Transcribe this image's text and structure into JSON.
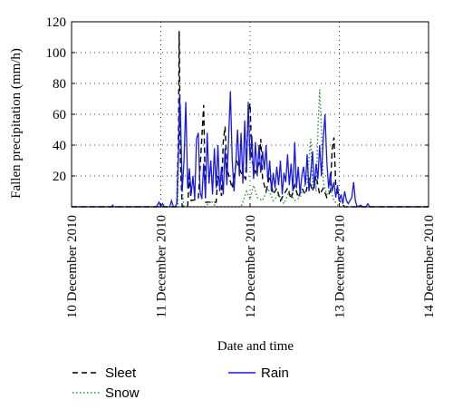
{
  "chart_data": {
    "type": "line",
    "xlabel": "Date and time",
    "ylabel": "Fallen precipitation (mm/h)",
    "ylim": [
      0,
      120
    ],
    "yticks": [
      20,
      40,
      60,
      80,
      100,
      120
    ],
    "x_range_days": [
      "10 December 2010",
      "14 December 2010"
    ],
    "xticks": [
      "10 December 2010",
      "11 December 2010",
      "12 December 2010",
      "13 December 2010",
      "14 December 2010"
    ],
    "grid": "dotted",
    "legend_placement": "bottom",
    "x_note": "x values are day offsets from 10 December 2010 00:00",
    "series": [
      {
        "name": "Sleet",
        "style": "dashed",
        "color": "#000000",
        "points": [
          [
            0,
            0
          ],
          [
            1.18,
            0
          ],
          [
            1.2,
            55
          ],
          [
            1.205,
            114
          ],
          [
            1.21,
            90
          ],
          [
            1.22,
            28
          ],
          [
            1.24,
            0
          ],
          [
            1.3,
            0
          ],
          [
            1.32,
            20
          ],
          [
            1.34,
            4
          ],
          [
            1.42,
            5
          ],
          [
            1.46,
            45
          ],
          [
            1.48,
            66
          ],
          [
            1.5,
            3
          ],
          [
            1.62,
            3
          ],
          [
            1.64,
            20
          ],
          [
            1.66,
            14
          ],
          [
            1.68,
            7
          ],
          [
            1.7,
            42
          ],
          [
            1.72,
            52
          ],
          [
            1.74,
            25
          ],
          [
            1.8,
            12
          ],
          [
            1.85,
            30
          ],
          [
            1.9,
            22
          ],
          [
            1.95,
            18
          ],
          [
            1.98,
            60
          ],
          [
            2.0,
            67
          ],
          [
            2.02,
            30
          ],
          [
            2.06,
            22
          ],
          [
            2.1,
            28
          ],
          [
            2.12,
            44
          ],
          [
            2.14,
            18
          ],
          [
            2.18,
            10
          ],
          [
            2.22,
            20
          ],
          [
            2.26,
            8
          ],
          [
            2.3,
            12
          ],
          [
            2.34,
            4
          ],
          [
            2.38,
            8
          ],
          [
            2.42,
            12
          ],
          [
            2.46,
            5
          ],
          [
            2.5,
            14
          ],
          [
            2.54,
            6
          ],
          [
            2.58,
            12
          ],
          [
            2.62,
            8
          ],
          [
            2.66,
            18
          ],
          [
            2.7,
            10
          ],
          [
            2.74,
            20
          ],
          [
            2.78,
            8
          ],
          [
            2.82,
            12
          ],
          [
            2.86,
            6
          ],
          [
            2.9,
            10
          ],
          [
            2.92,
            37
          ],
          [
            2.94,
            45
          ],
          [
            2.96,
            14
          ],
          [
            3.0,
            4
          ],
          [
            3.06,
            0
          ],
          [
            4.0,
            0
          ]
        ]
      },
      {
        "name": "Snow",
        "style": "dotted",
        "color": "#2e8b3a",
        "points": [
          [
            0,
            0
          ],
          [
            1.19,
            0
          ],
          [
            1.2,
            40
          ],
          [
            1.22,
            66
          ],
          [
            1.24,
            10
          ],
          [
            1.26,
            0
          ],
          [
            1.5,
            0
          ],
          [
            1.56,
            4
          ],
          [
            1.62,
            0
          ],
          [
            1.9,
            0
          ],
          [
            1.96,
            10
          ],
          [
            2.0,
            5
          ],
          [
            2.04,
            14
          ],
          [
            2.08,
            6
          ],
          [
            2.14,
            4
          ],
          [
            2.2,
            12
          ],
          [
            2.26,
            4
          ],
          [
            2.32,
            8
          ],
          [
            2.38,
            2
          ],
          [
            2.44,
            10
          ],
          [
            2.5,
            4
          ],
          [
            2.56,
            6
          ],
          [
            2.6,
            12
          ],
          [
            2.64,
            18
          ],
          [
            2.68,
            44
          ],
          [
            2.7,
            14
          ],
          [
            2.72,
            20
          ],
          [
            2.74,
            10
          ],
          [
            2.76,
            50
          ],
          [
            2.78,
            76
          ],
          [
            2.8,
            50
          ],
          [
            2.82,
            16
          ],
          [
            2.86,
            8
          ],
          [
            2.9,
            12
          ],
          [
            2.94,
            4
          ],
          [
            3.0,
            0
          ],
          [
            4.0,
            0
          ]
        ]
      },
      {
        "name": "Rain",
        "style": "solid",
        "color": "#1a1adf",
        "points": [
          [
            0,
            0
          ],
          [
            0.45,
            0
          ],
          [
            0.46,
            1
          ],
          [
            0.47,
            0
          ],
          [
            0.95,
            0
          ],
          [
            0.98,
            3
          ],
          [
            1.0,
            0
          ],
          [
            1.02,
            2
          ],
          [
            1.04,
            0
          ],
          [
            1.1,
            0
          ],
          [
            1.12,
            4
          ],
          [
            1.14,
            0
          ],
          [
            1.16,
            0
          ],
          [
            1.18,
            2
          ],
          [
            1.2,
            40
          ],
          [
            1.21,
            72
          ],
          [
            1.22,
            58
          ],
          [
            1.24,
            10
          ],
          [
            1.26,
            30
          ],
          [
            1.28,
            68
          ],
          [
            1.3,
            12
          ],
          [
            1.32,
            25
          ],
          [
            1.34,
            8
          ],
          [
            1.36,
            20
          ],
          [
            1.38,
            5
          ],
          [
            1.4,
            44
          ],
          [
            1.42,
            48
          ],
          [
            1.44,
            10
          ],
          [
            1.46,
            5
          ],
          [
            1.48,
            28
          ],
          [
            1.5,
            6
          ],
          [
            1.52,
            48
          ],
          [
            1.54,
            15
          ],
          [
            1.56,
            30
          ],
          [
            1.58,
            8
          ],
          [
            1.6,
            38
          ],
          [
            1.62,
            12
          ],
          [
            1.64,
            40
          ],
          [
            1.66,
            10
          ],
          [
            1.68,
            26
          ],
          [
            1.7,
            8
          ],
          [
            1.72,
            38
          ],
          [
            1.74,
            14
          ],
          [
            1.76,
            46
          ],
          [
            1.78,
            75
          ],
          [
            1.8,
            30
          ],
          [
            1.82,
            10
          ],
          [
            1.84,
            28
          ],
          [
            1.86,
            50
          ],
          [
            1.88,
            20
          ],
          [
            1.9,
            48
          ],
          [
            1.92,
            15
          ],
          [
            1.94,
            56
          ],
          [
            1.96,
            22
          ],
          [
            1.98,
            68
          ],
          [
            2.0,
            30
          ],
          [
            2.02,
            46
          ],
          [
            2.04,
            18
          ],
          [
            2.06,
            42
          ],
          [
            2.08,
            20
          ],
          [
            2.1,
            40
          ],
          [
            2.12,
            22
          ],
          [
            2.14,
            36
          ],
          [
            2.16,
            24
          ],
          [
            2.18,
            40
          ],
          [
            2.2,
            16
          ],
          [
            2.22,
            30
          ],
          [
            2.24,
            10
          ],
          [
            2.26,
            22
          ],
          [
            2.28,
            12
          ],
          [
            2.3,
            26
          ],
          [
            2.32,
            14
          ],
          [
            2.34,
            30
          ],
          [
            2.36,
            8
          ],
          [
            2.38,
            22
          ],
          [
            2.4,
            16
          ],
          [
            2.42,
            34
          ],
          [
            2.44,
            14
          ],
          [
            2.46,
            28
          ],
          [
            2.48,
            10
          ],
          [
            2.5,
            42
          ],
          [
            2.52,
            12
          ],
          [
            2.54,
            26
          ],
          [
            2.56,
            8
          ],
          [
            2.58,
            20
          ],
          [
            2.6,
            26
          ],
          [
            2.62,
            14
          ],
          [
            2.64,
            34
          ],
          [
            2.66,
            10
          ],
          [
            2.68,
            22
          ],
          [
            2.7,
            36
          ],
          [
            2.72,
            12
          ],
          [
            2.74,
            28
          ],
          [
            2.76,
            18
          ],
          [
            2.78,
            40
          ],
          [
            2.8,
            20
          ],
          [
            2.82,
            44
          ],
          [
            2.84,
            60
          ],
          [
            2.86,
            30
          ],
          [
            2.88,
            12
          ],
          [
            2.9,
            22
          ],
          [
            2.92,
            10
          ],
          [
            2.94,
            16
          ],
          [
            2.96,
            6
          ],
          [
            2.98,
            14
          ],
          [
            3.0,
            4
          ],
          [
            3.02,
            8
          ],
          [
            3.04,
            2
          ],
          [
            3.06,
            10
          ],
          [
            3.08,
            4
          ],
          [
            3.1,
            2
          ],
          [
            3.14,
            6
          ],
          [
            3.16,
            16
          ],
          [
            3.18,
            4
          ],
          [
            3.2,
            0
          ],
          [
            3.24,
            1
          ],
          [
            3.26,
            0
          ],
          [
            3.3,
            0
          ],
          [
            3.32,
            2
          ],
          [
            3.34,
            0
          ],
          [
            4.0,
            0
          ]
        ]
      }
    ]
  }
}
